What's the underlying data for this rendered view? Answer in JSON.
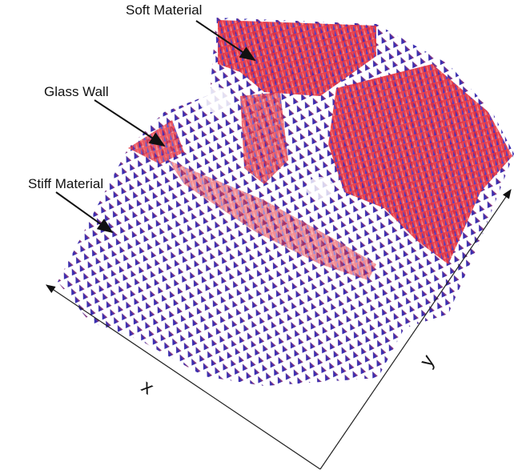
{
  "annotations": [
    "Soft Material",
    "Glass Wall",
    "Stiff Material"
  ],
  "axes": {
    "x": "x",
    "y": "y"
  }
}
